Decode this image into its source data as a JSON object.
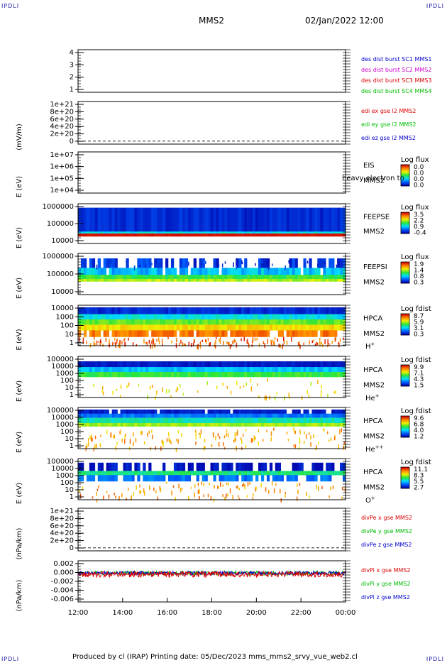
{
  "corners": {
    "tl": "IPDLI",
    "tr": "IPDLI",
    "bl": "IPDLI",
    "br": "IPDLI"
  },
  "header": {
    "spacecraft": "MMS2",
    "datetime": "02/Jan/2022 12:00"
  },
  "footer": {
    "text": "Produced by cl (IRAP)   Printing date: 05/Dec/2023   mms_mms2_srvy_vue_web2.cl"
  },
  "colors": {
    "blue": "#0000cc",
    "magenta": "#cc00cc",
    "red": "#dd0000",
    "green": "#00bb00",
    "frame": "#000000"
  },
  "chart_data": [
    {
      "id": "p1",
      "type": "line",
      "ylabel": "",
      "yticks": [
        "4",
        "3",
        "2",
        "1"
      ],
      "legend": [
        {
          "text": "des dist burst SC1 MMS1",
          "color": "#0000cc"
        },
        {
          "text": "des dist burst SC2 MMS2",
          "color": "#cc00cc"
        },
        {
          "text": "des dist burst SC3 MMS3",
          "color": "#dd0000"
        },
        {
          "text": "des dist burst SC4 MMS4",
          "color": "#00bb00"
        }
      ]
    },
    {
      "id": "p2",
      "type": "line",
      "ylabel": "(mV/m)",
      "yticks": [
        "1e+21",
        "8e+20",
        "6e+20",
        "4e+20",
        "2e+20",
        "0"
      ],
      "legend": [
        {
          "text": "edi ex gse l2 MMS2",
          "color": "#dd0000"
        },
        {
          "text": "edi ey gse l2 MMS2",
          "color": "#00bb00"
        },
        {
          "text": "edi ez gse l2 MMS2",
          "color": "#0000cc"
        }
      ]
    },
    {
      "id": "p3",
      "type": "heatmap",
      "ylabel": "E (eV)",
      "yticks": [
        "1e+07",
        "1e+06",
        "1e+05",
        "1e+04"
      ],
      "instrument": [
        "EIS",
        "MMS2"
      ],
      "overlay": "heavy electron to",
      "cbar_title": "Log flux",
      "cbar_ticks": [
        "0.0",
        "0.0",
        "0.0",
        "0.0"
      ]
    },
    {
      "id": "p4",
      "type": "heatmap",
      "ylabel": "E (eV)",
      "yticks": [
        "1000000",
        "100000",
        "10000"
      ],
      "instrument": [
        "FEEPSE",
        "MMS2"
      ],
      "cbar_title": "Log flux",
      "cbar_ticks": [
        "3.5",
        "2.2",
        "0.9",
        "-0.4"
      ]
    },
    {
      "id": "p5",
      "type": "heatmap",
      "ylabel": "E (eV)",
      "yticks": [
        "1000000",
        "100000",
        "10000"
      ],
      "instrument": [
        "FEEPSI",
        "MMS2"
      ],
      "cbar_title": "Log flux",
      "cbar_ticks": [
        "1.9",
        "1.4",
        "0.8",
        "0.3"
      ]
    },
    {
      "id": "p6",
      "type": "heatmap",
      "ylabel": "E (eV)",
      "yticks": [
        "10000",
        "1000",
        "100",
        "10",
        "1"
      ],
      "instrument": [
        "HPCA",
        "MMS2",
        "H+"
      ],
      "cbar_title": "Log fdist",
      "cbar_ticks": [
        "8.7",
        "5.9",
        "3.1",
        "0.3"
      ]
    },
    {
      "id": "p7",
      "type": "heatmap",
      "ylabel": "E (eV)",
      "yticks": [
        "100000",
        "10000",
        "1000",
        "100",
        "10",
        "1"
      ],
      "instrument": [
        "HPCA",
        "MMS2",
        "He+"
      ],
      "cbar_title": "Log fdist",
      "cbar_ticks": [
        "9.9",
        "7.1",
        "4.3",
        "1.5"
      ]
    },
    {
      "id": "p8",
      "type": "heatmap",
      "ylabel": "E (eV)",
      "yticks": [
        "100000",
        "10000",
        "1000",
        "100",
        "10",
        "1"
      ],
      "instrument": [
        "HPCA",
        "MMS2",
        "He++"
      ],
      "cbar_title": "Log fdist",
      "cbar_ticks": [
        "9.6",
        "6.8",
        "4.0",
        "1.2"
      ]
    },
    {
      "id": "p9",
      "type": "heatmap",
      "ylabel": "E (eV)",
      "yticks": [
        "100000",
        "10000",
        "1000",
        "100",
        "10",
        "1"
      ],
      "instrument": [
        "HPCA",
        "MMS2",
        "O+"
      ],
      "cbar_title": "Log fdist",
      "cbar_ticks": [
        "11.1",
        "8.3",
        "5.5",
        "2.7"
      ]
    },
    {
      "id": "p10",
      "type": "line",
      "ylabel": "(nPa/km)",
      "yticks": [
        "1e+21",
        "8e+20",
        "6e+20",
        "4e+20",
        "2e+20",
        "0"
      ],
      "legend": [
        {
          "text": "divPe x gse MMS2",
          "color": "#dd0000"
        },
        {
          "text": "divPe y gse MMS2",
          "color": "#00bb00"
        },
        {
          "text": "divPe z gse MMS2",
          "color": "#0000cc"
        }
      ]
    },
    {
      "id": "p11",
      "type": "line",
      "ylabel": "(nPa/km)",
      "yticks": [
        "0.002",
        "0.000",
        "-0.002",
        "-0.004",
        "-0.006"
      ],
      "legend": [
        {
          "text": "divPi x gse MMS2",
          "color": "#dd0000"
        },
        {
          "text": "divPi y gse MMS2",
          "color": "#00bb00"
        },
        {
          "text": "divPi z gse MMS2",
          "color": "#0000cc"
        }
      ]
    }
  ],
  "xaxis": {
    "ticks": [
      "12:00",
      "14:00",
      "16:00",
      "18:00",
      "20:00",
      "22:00",
      "00:00"
    ]
  }
}
